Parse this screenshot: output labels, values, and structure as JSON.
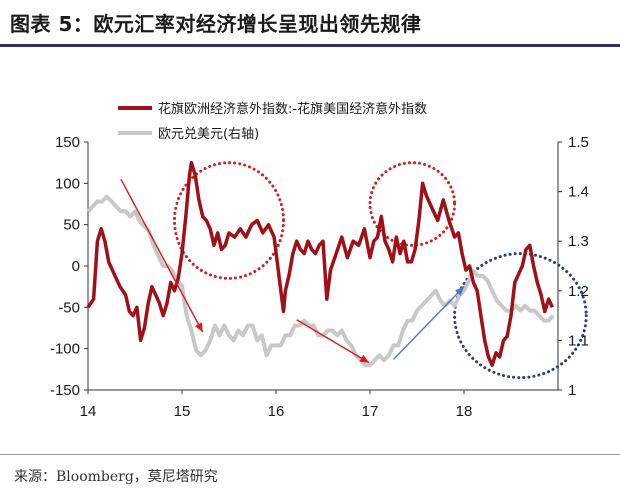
{
  "figure_title": "图表 5：欧元汇率对经济增长呈现出领先规律",
  "source": "来源：Bloomberg，莫尼塔研究",
  "colors": {
    "primary": "#a01018",
    "secondary": "#c8c8c8",
    "ellipse_red": "#d02020",
    "ellipse_blue": "#2a3f7a",
    "arrow_red": "#e01818",
    "arrow_blue": "#4a78c8",
    "title_rule": "#2e2e6e"
  },
  "chart_data": {
    "type": "line",
    "x_ticks": [
      "14",
      "15",
      "16",
      "17",
      "18"
    ],
    "xlim": [
      2014,
      2019
    ],
    "y_left": {
      "ticks": [
        "150",
        "100",
        "50",
        "0",
        "-50",
        "-100",
        "-150"
      ],
      "lim": [
        -150,
        150
      ]
    },
    "y_right": {
      "ticks": [
        "1.5",
        "1.4",
        "1.3",
        "1.2",
        "1.1",
        "1"
      ],
      "lim": [
        1.0,
        1.5
      ]
    },
    "legend": [
      "花旗欧洲经济意外指数:-花旗美国经济意外指数",
      "欧元兑美元(右轴)"
    ],
    "series": [
      {
        "name": "花旗欧洲经济意外指数:-花旗美国经济意外指数",
        "axis": "left",
        "x": [
          2014.0,
          2014.06,
          2014.1,
          2014.14,
          2014.18,
          2014.22,
          2014.28,
          2014.34,
          2014.4,
          2014.44,
          2014.48,
          2014.52,
          2014.56,
          2014.6,
          2014.64,
          2014.68,
          2014.72,
          2014.76,
          2014.8,
          2014.84,
          2014.88,
          2014.92,
          2014.96,
          2015.0,
          2015.04,
          2015.08,
          2015.1,
          2015.14,
          2015.18,
          2015.22,
          2015.26,
          2015.3,
          2015.34,
          2015.38,
          2015.42,
          2015.46,
          2015.5,
          2015.56,
          2015.62,
          2015.68,
          2015.74,
          2015.8,
          2015.86,
          2015.92,
          2015.98,
          2016.04,
          2016.08,
          2016.1,
          2016.14,
          2016.18,
          2016.22,
          2016.26,
          2016.3,
          2016.34,
          2016.38,
          2016.42,
          2016.46,
          2016.5,
          2016.54,
          2016.58,
          2016.64,
          2016.7,
          2016.76,
          2016.82,
          2016.88,
          2016.94,
          2017.0,
          2017.04,
          2017.08,
          2017.12,
          2017.16,
          2017.2,
          2017.24,
          2017.28,
          2017.32,
          2017.36,
          2017.4,
          2017.44,
          2017.48,
          2017.52,
          2017.56,
          2017.6,
          2017.66,
          2017.72,
          2017.78,
          2017.84,
          2017.9,
          2017.94,
          2017.98,
          2018.02,
          2018.06,
          2018.1,
          2018.14,
          2018.18,
          2018.22,
          2018.26,
          2018.3,
          2018.34,
          2018.38,
          2018.42,
          2018.46,
          2018.5,
          2018.54,
          2018.58,
          2018.62,
          2018.66,
          2018.7,
          2018.74,
          2018.78,
          2018.82,
          2018.86,
          2018.9,
          2018.94
        ],
        "y": [
          -50,
          -40,
          30,
          45,
          30,
          5,
          -10,
          -25,
          -35,
          -55,
          -60,
          -50,
          -90,
          -75,
          -45,
          -25,
          -35,
          -45,
          -60,
          -45,
          -20,
          -30,
          -15,
          15,
          60,
          110,
          125,
          110,
          80,
          60,
          55,
          45,
          25,
          40,
          20,
          25,
          40,
          35,
          45,
          35,
          50,
          55,
          40,
          50,
          35,
          -20,
          -55,
          -30,
          -10,
          15,
          30,
          20,
          15,
          30,
          20,
          15,
          25,
          30,
          -40,
          -5,
          15,
          35,
          10,
          30,
          25,
          45,
          10,
          30,
          35,
          60,
          30,
          20,
          5,
          35,
          15,
          30,
          5,
          5,
          20,
          55,
          100,
          85,
          70,
          55,
          80,
          55,
          35,
          40,
          15,
          -5,
          0,
          -20,
          -30,
          -60,
          -90,
          -110,
          -120,
          -105,
          -110,
          -90,
          -85,
          -60,
          -20,
          -10,
          0,
          20,
          25,
          0,
          -20,
          -35,
          -55,
          -40,
          -50
        ]
      },
      {
        "name": "欧元兑美元(右轴)",
        "axis": "right",
        "x": [
          2014.0,
          2014.05,
          2014.1,
          2014.15,
          2014.2,
          2014.25,
          2014.3,
          2014.35,
          2014.4,
          2014.45,
          2014.5,
          2014.55,
          2014.6,
          2014.65,
          2014.7,
          2014.75,
          2014.8,
          2014.85,
          2014.9,
          2014.95,
          2015.0,
          2015.05,
          2015.1,
          2015.15,
          2015.2,
          2015.25,
          2015.3,
          2015.35,
          2015.4,
          2015.45,
          2015.5,
          2015.55,
          2015.6,
          2015.65,
          2015.7,
          2015.75,
          2015.8,
          2015.85,
          2015.9,
          2015.95,
          2016.0,
          2016.05,
          2016.1,
          2016.15,
          2016.2,
          2016.25,
          2016.3,
          2016.35,
          2016.4,
          2016.45,
          2016.5,
          2016.55,
          2016.6,
          2016.65,
          2016.7,
          2016.75,
          2016.8,
          2016.85,
          2016.9,
          2016.95,
          2017.0,
          2017.05,
          2017.1,
          2017.15,
          2017.2,
          2017.25,
          2017.3,
          2017.35,
          2017.4,
          2017.45,
          2017.5,
          2017.55,
          2017.6,
          2017.65,
          2017.7,
          2017.75,
          2017.8,
          2017.85,
          2017.9,
          2017.95,
          2018.0,
          2018.05,
          2018.1,
          2018.15,
          2018.2,
          2018.25,
          2018.3,
          2018.35,
          2018.4,
          2018.45,
          2018.5,
          2018.55,
          2018.6,
          2018.65,
          2018.7,
          2018.75,
          2018.8,
          2018.85,
          2018.9,
          2018.95
        ],
        "y": [
          1.36,
          1.37,
          1.38,
          1.38,
          1.39,
          1.38,
          1.37,
          1.36,
          1.36,
          1.35,
          1.36,
          1.34,
          1.33,
          1.32,
          1.29,
          1.27,
          1.25,
          1.25,
          1.24,
          1.22,
          1.21,
          1.15,
          1.12,
          1.08,
          1.07,
          1.08,
          1.1,
          1.13,
          1.11,
          1.13,
          1.11,
          1.1,
          1.12,
          1.11,
          1.13,
          1.13,
          1.1,
          1.11,
          1.07,
          1.09,
          1.09,
          1.09,
          1.11,
          1.11,
          1.13,
          1.13,
          1.14,
          1.13,
          1.13,
          1.11,
          1.11,
          1.12,
          1.12,
          1.11,
          1.12,
          1.1,
          1.09,
          1.07,
          1.06,
          1.05,
          1.05,
          1.06,
          1.07,
          1.06,
          1.07,
          1.09,
          1.09,
          1.12,
          1.14,
          1.14,
          1.16,
          1.17,
          1.18,
          1.19,
          1.2,
          1.18,
          1.17,
          1.18,
          1.17,
          1.19,
          1.2,
          1.22,
          1.24,
          1.23,
          1.23,
          1.22,
          1.2,
          1.18,
          1.17,
          1.16,
          1.16,
          1.17,
          1.16,
          1.17,
          1.16,
          1.16,
          1.15,
          1.14,
          1.14,
          1.15
        ]
      }
    ],
    "annotations": {
      "ellipses": [
        {
          "cx": 2015.5,
          "cy": 55,
          "rx": 0.58,
          "ry": 70,
          "color": "red"
        },
        {
          "cx": 2017.45,
          "cy": 75,
          "rx": 0.45,
          "ry": 50,
          "color": "red"
        },
        {
          "cx": 2018.6,
          "cy": -60,
          "rx": 0.7,
          "ry": 75,
          "color": "blue"
        }
      ],
      "arrows": [
        {
          "from": [
            2014.35,
            105
          ],
          "to": [
            2015.22,
            -80
          ],
          "color": "red"
        },
        {
          "from": [
            2016.22,
            -65
          ],
          "to": [
            2016.99,
            -117
          ],
          "color": "red"
        },
        {
          "from": [
            2017.25,
            -113
          ],
          "to": [
            2018.0,
            -25
          ],
          "color": "blue"
        }
      ]
    }
  }
}
